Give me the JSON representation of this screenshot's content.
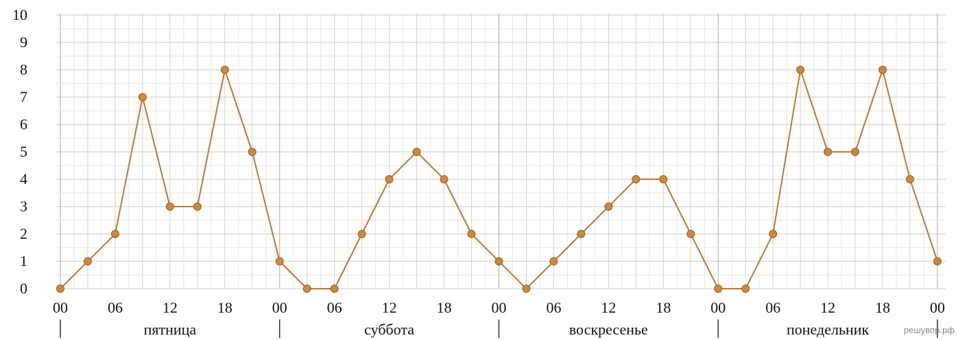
{
  "chart_data": {
    "type": "line",
    "title": "",
    "xlabel": "",
    "ylabel": "",
    "ylim": [
      0,
      10
    ],
    "y_ticks": [
      "0",
      "1",
      "2",
      "3",
      "4",
      "5",
      "6",
      "7",
      "8",
      "9",
      "10"
    ],
    "x_step_hours": 3,
    "x_tick_labels": [
      "00",
      "06",
      "12",
      "18",
      "00",
      "06",
      "12",
      "18",
      "00",
      "06",
      "12",
      "18",
      "00",
      "06",
      "12",
      "18",
      "00"
    ],
    "days": [
      "пятница",
      "суббота",
      "воскресенье",
      "понедельник"
    ],
    "grid": true,
    "line_color": "#b8763a",
    "marker_color": "#c98a3f",
    "series": [
      {
        "values": [
          0,
          1,
          2,
          7,
          3,
          3,
          8,
          5,
          1,
          0,
          0,
          2,
          4,
          5,
          4,
          2,
          1,
          0,
          1,
          2,
          3,
          4,
          4,
          2,
          0,
          0,
          2,
          8,
          5,
          5,
          8,
          4,
          1
        ]
      }
    ]
  },
  "watermark": "решувпр.рф"
}
